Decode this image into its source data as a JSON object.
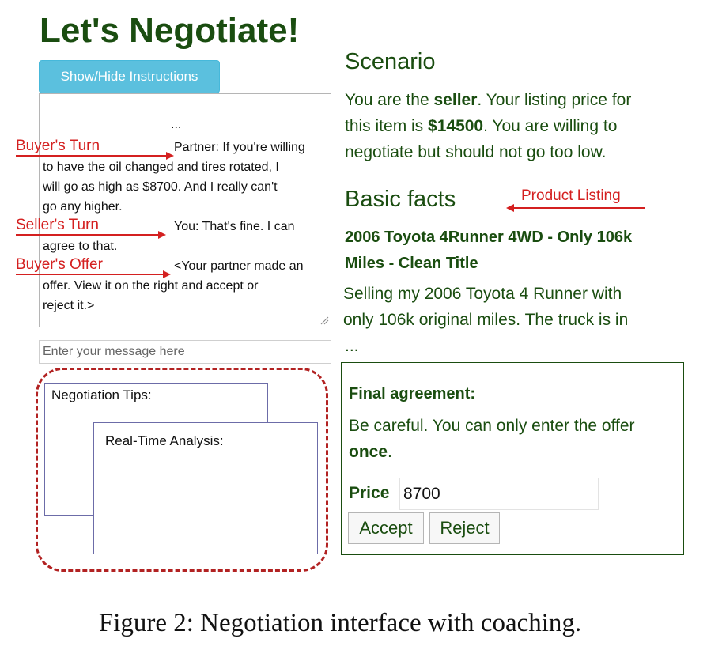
{
  "page_title": "Let's Negotiate!",
  "toggle_instructions_label": "Show/Hide Instructions",
  "chat": {
    "ellipsis": "...",
    "lines": [
      "Partner: If you're willing",
      "to have the oil changed and tires rotated, I",
      "will go as high as $8700. And I really can't",
      "go any higher.",
      "You: That's fine. I can",
      "agree to that.",
      "<Your partner made an",
      "offer. View it on the right and accept or",
      "reject it.>"
    ]
  },
  "annotations": {
    "buyers_turn": "Buyer's Turn",
    "sellers_turn": "Seller's Turn",
    "buyers_offer": "Buyer's Offer",
    "product_listing": "Product Listing",
    "arrow_color": "#d42020"
  },
  "message_input": {
    "placeholder": "Enter your message here",
    "value": ""
  },
  "coaching": {
    "tips_label": "Negotiation Tips:",
    "analysis_label": "Real-Time Analysis:",
    "outline_color": "#b22222"
  },
  "scenario": {
    "heading": "Scenario",
    "line1_pre": "You are the ",
    "role": "seller",
    "line1_post": ". Your listing price for",
    "line2_pre": "this item is ",
    "listing_price": "$14500",
    "line2_post": ". You are willing to",
    "line3": "negotiate but should not go too low."
  },
  "basic_facts": {
    "heading": "Basic facts",
    "listing_title_line1": "2006 Toyota 4Runner 4WD - Only 106k",
    "listing_title_line2": "Miles - Clean Title",
    "desc_line1": "Selling my 2006 Toyota 4 Runner with",
    "desc_line2": "only 106k original miles. The truck is in",
    "desc_ellipsis": "..."
  },
  "final_agreement": {
    "heading": "Final agreement:",
    "warning_line1": "Be careful. You can only enter the offer",
    "warning_line2_bold": "once",
    "warning_line2_post": ".",
    "price_label": "Price",
    "price_value": "8700",
    "accept_label": "Accept",
    "reject_label": "Reject"
  },
  "caption": "Figure 2: Negotiation interface with coaching.",
  "colors": {
    "heading_green": "#1a4d10",
    "button_blue": "#5bc0de"
  }
}
